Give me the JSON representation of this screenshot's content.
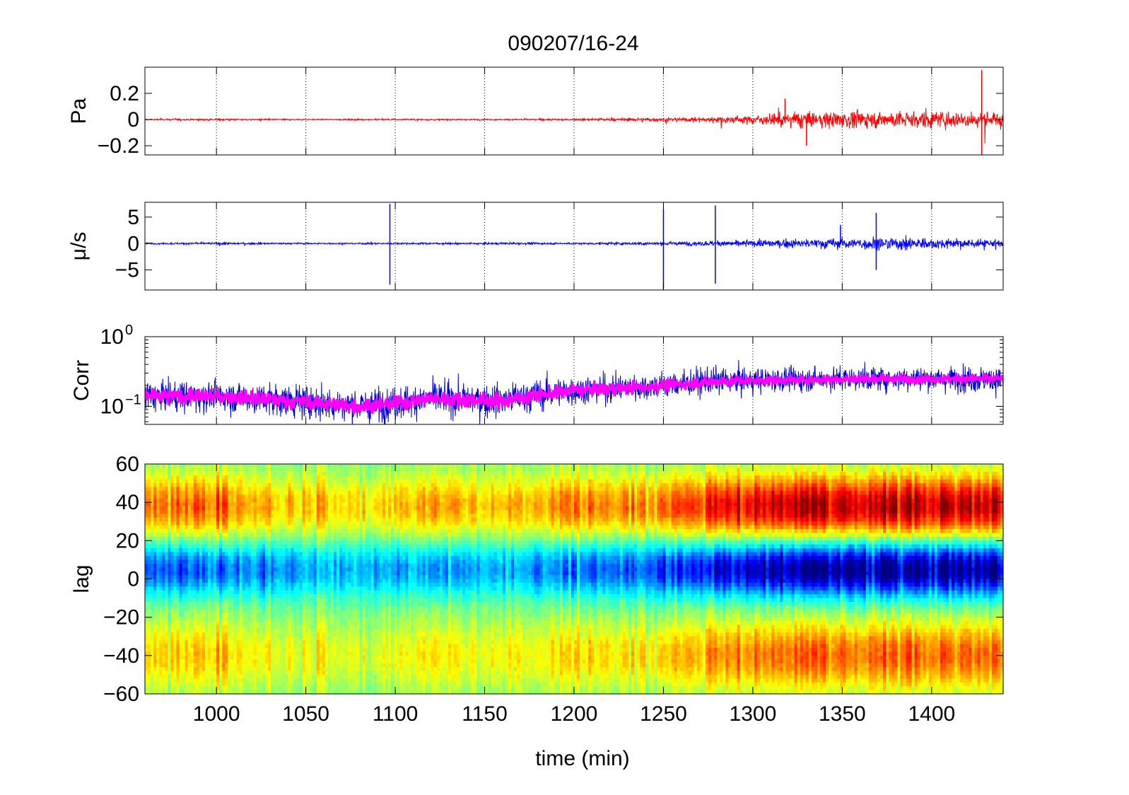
{
  "title": "090207/16-24",
  "xlabel": "time (min)",
  "colors": {
    "pressure": "#ff0000",
    "velocity": "#0000ff",
    "corr_raw": "#0000cc",
    "corr_smooth": "#ff00ff",
    "frame": "#000000",
    "grid": "#000000"
  },
  "chart_data": [
    {
      "type": "line",
      "panel": "pressure",
      "ylabel": "Pa",
      "xlim": [
        960,
        1440
      ],
      "ylim": [
        -0.27,
        0.4
      ],
      "xticks": [
        1000,
        1050,
        1100,
        1150,
        1200,
        1250,
        1300,
        1350,
        1400
      ],
      "yticks": [
        {
          "value": 0.2,
          "label": "0.2"
        },
        {
          "value": 0,
          "label": "0"
        },
        {
          "value": -0.2,
          "label": "−0.2"
        }
      ],
      "grid": "x-dotted",
      "series": [
        {
          "color": "#ff0000",
          "x": [
            960,
            980,
            1000,
            1020,
            1040,
            1060,
            1080,
            1100,
            1120,
            1140,
            1160,
            1180,
            1200,
            1220,
            1240,
            1260,
            1280,
            1300,
            1310,
            1320,
            1340,
            1360,
            1380,
            1400,
            1420,
            1440
          ],
          "amplitude": [
            0.01,
            0.012,
            0.015,
            0.013,
            0.01,
            0.008,
            0.01,
            0.012,
            0.012,
            0.01,
            0.01,
            0.012,
            0.015,
            0.02,
            0.03,
            0.03,
            0.045,
            0.06,
            0.07,
            0.12,
            0.12,
            0.12,
            0.12,
            0.12,
            0.12,
            0.1
          ],
          "spikes": [
            {
              "x": 1428,
              "y": 0.38
            },
            {
              "x": 1428,
              "y": -0.27
            },
            {
              "x": 1318,
              "y": 0.16
            },
            {
              "x": 1330,
              "y": -0.2
            }
          ]
        }
      ]
    },
    {
      "type": "line",
      "panel": "velocity",
      "ylabel": "μ/s",
      "xlim": [
        960,
        1440
      ],
      "ylim": [
        -8.8,
        7.8
      ],
      "xticks": [
        1000,
        1050,
        1100,
        1150,
        1200,
        1250,
        1300,
        1350,
        1400
      ],
      "yticks": [
        {
          "value": 5,
          "label": "5"
        },
        {
          "value": 0,
          "label": "0"
        },
        {
          "value": -5,
          "label": "−5"
        }
      ],
      "grid": "x-dotted",
      "series": [
        {
          "color": "#0000ff",
          "x": [
            960,
            1000,
            1040,
            1080,
            1100,
            1120,
            1160,
            1200,
            1230,
            1250,
            1270,
            1290,
            1300,
            1320,
            1340,
            1360,
            1380,
            1400,
            1420,
            1440
          ],
          "amplitude": [
            0.3,
            0.4,
            0.3,
            0.3,
            0.3,
            0.3,
            0.4,
            0.3,
            0.5,
            0.6,
            0.8,
            1.0,
            1.2,
            1.5,
            1.8,
            2.2,
            2.4,
            2.0,
            1.5,
            1.2
          ],
          "spikes": [
            {
              "x": 1097,
              "y": 7.5
            },
            {
              "x": 1097,
              "y": -7.8
            },
            {
              "x": 1250,
              "y": 6.5
            },
            {
              "x": 1250,
              "y": -8.6
            },
            {
              "x": 1279,
              "y": 7.2
            },
            {
              "x": 1279,
              "y": -7.6
            },
            {
              "x": 1369,
              "y": 5.8
            },
            {
              "x": 1369,
              "y": -5.0
            },
            {
              "x": 1349,
              "y": 3.5
            }
          ]
        }
      ]
    },
    {
      "type": "line",
      "panel": "correlation",
      "ylabel": "Corr",
      "scale": "log",
      "xlim": [
        960,
        1440
      ],
      "ylim": [
        0.055,
        1.0
      ],
      "xticks": [
        1000,
        1050,
        1100,
        1150,
        1200,
        1250,
        1300,
        1350,
        1400
      ],
      "yticks": [
        {
          "value": 1,
          "label": "10",
          "exponent": "0"
        },
        {
          "value": 0.1,
          "label": "10",
          "exponent": "−1"
        }
      ],
      "grid": "x-dotted",
      "series": [
        {
          "color": "#0000cc",
          "x": [
            960,
            1000,
            1040,
            1080,
            1100,
            1120,
            1160,
            1200,
            1240,
            1280,
            1320,
            1360,
            1400,
            1440
          ],
          "center": [
            0.14,
            0.14,
            0.12,
            0.1,
            0.11,
            0.13,
            0.12,
            0.17,
            0.19,
            0.23,
            0.24,
            0.25,
            0.25,
            0.24
          ],
          "spread": [
            0.5,
            0.5,
            0.55,
            0.55,
            0.55,
            0.55,
            0.55,
            0.5,
            0.45,
            0.45,
            0.4,
            0.4,
            0.4,
            0.45
          ]
        },
        {
          "color": "#ff00ff",
          "x": [
            960,
            1000,
            1040,
            1080,
            1100,
            1120,
            1160,
            1200,
            1240,
            1280,
            1320,
            1360,
            1400,
            1440
          ],
          "center": [
            0.14,
            0.14,
            0.12,
            0.1,
            0.11,
            0.13,
            0.12,
            0.17,
            0.19,
            0.23,
            0.24,
            0.25,
            0.25,
            0.25
          ],
          "spread": [
            0.25,
            0.25,
            0.25,
            0.25,
            0.25,
            0.25,
            0.25,
            0.22,
            0.2,
            0.18,
            0.15,
            0.15,
            0.15,
            0.15
          ]
        }
      ]
    },
    {
      "type": "heatmap",
      "panel": "lag",
      "ylabel": "lag",
      "xlim": [
        960,
        1440
      ],
      "ylim": [
        -60,
        60
      ],
      "xticks": [
        {
          "value": 1000,
          "label": "1000"
        },
        {
          "value": 1050,
          "label": "1050"
        },
        {
          "value": 1100,
          "label": "1100"
        },
        {
          "value": 1150,
          "label": "1150"
        },
        {
          "value": 1200,
          "label": "1200"
        },
        {
          "value": 1250,
          "label": "1250"
        },
        {
          "value": 1300,
          "label": "1300"
        },
        {
          "value": 1350,
          "label": "1350"
        },
        {
          "value": 1400,
          "label": "1400"
        }
      ],
      "yticks": [
        {
          "value": 60,
          "label": "60"
        },
        {
          "value": 40,
          "label": "40"
        },
        {
          "value": 20,
          "label": "20"
        },
        {
          "value": 0,
          "label": "0"
        },
        {
          "value": -20,
          "label": "−20"
        },
        {
          "value": -40,
          "label": "−40"
        },
        {
          "value": -60,
          "label": "−60"
        }
      ],
      "colormap": "jet",
      "features": {
        "trough_lag": 5,
        "upper_peak_lag": 38,
        "lower_peak_lag": -40,
        "strength_by_time": {
          "x": [
            960,
            1000,
            1040,
            1080,
            1120,
            1160,
            1200,
            1240,
            1260,
            1280,
            1300,
            1320,
            1340,
            1360,
            1380,
            1400,
            1420,
            1440
          ],
          "value": [
            0.55,
            0.6,
            0.45,
            0.35,
            0.45,
            0.4,
            0.55,
            0.6,
            0.7,
            0.8,
            0.85,
            0.95,
            0.95,
            0.95,
            0.95,
            0.95,
            0.95,
            0.9
          ]
        }
      }
    }
  ]
}
